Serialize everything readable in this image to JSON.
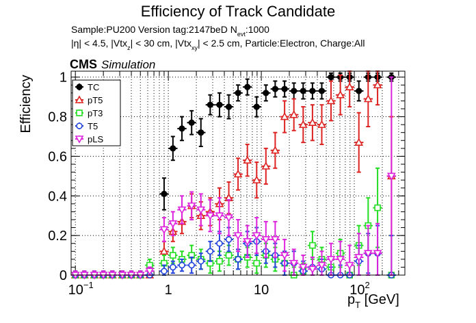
{
  "header": {
    "title": "Efficiency of Track Candidate",
    "sample_line_pre": "Sample:PU200   Version tag:2147beD  N",
    "sample_line_sub": "evt",
    "sample_line_post": ":1000",
    "cuts": {
      "p1": "|η| < 4.5, |Vtx",
      "s1": "z",
      "p2": "| < 30 cm, |Vtx",
      "s2": "xy",
      "p3": "| < 2.5 cm, Particle:Electron, Charge:All"
    }
  },
  "cms_label": {
    "bold": "CMS",
    "italic": "Simulation"
  },
  "chart_data": {
    "type": "scatter",
    "title": "Efficiency of Track Candidate",
    "xlabel": "p_T [GeV]",
    "xlabel_main": "p",
    "xlabel_sub": "T",
    "xlabel_unit": " [GeV]",
    "ylabel": "Efficiency",
    "xscale": "log",
    "xlim": [
      0.09,
      350
    ],
    "ylim": [
      0,
      1.03
    ],
    "grid": true,
    "legend_position": "top-left",
    "x_ticks": [
      {
        "value": 0.1,
        "base": "10",
        "exp": "−1"
      },
      {
        "value": 1,
        "base": "1",
        "exp": ""
      },
      {
        "value": 10,
        "base": "10",
        "exp": ""
      },
      {
        "value": 100,
        "base": "10",
        "exp": "2"
      }
    ],
    "y_ticks": [
      "0",
      "0.2",
      "0.4",
      "0.6",
      "0.8",
      "1"
    ],
    "series": [
      {
        "name": "TC",
        "color": "#000000",
        "marker": "filled-circle",
        "points": [
          [
            0.1,
            0,
            0.02
          ],
          [
            0.125,
            0,
            0.02
          ],
          [
            0.16,
            0,
            0.02
          ],
          [
            0.2,
            0,
            0.02
          ],
          [
            0.25,
            0,
            0.02
          ],
          [
            0.32,
            0,
            0.02
          ],
          [
            0.4,
            0,
            0.02
          ],
          [
            0.5,
            0,
            0.02
          ],
          [
            0.63,
            0,
            0.02
          ],
          [
            0.9,
            0.41,
            0.08
          ],
          [
            1.12,
            0.64,
            0.06
          ],
          [
            1.4,
            0.74,
            0.06
          ],
          [
            1.78,
            0.77,
            0.06
          ],
          [
            2.24,
            0.72,
            0.07
          ],
          [
            2.82,
            0.86,
            0.05
          ],
          [
            3.55,
            0.86,
            0.06
          ],
          [
            4.47,
            0.85,
            0.06
          ],
          [
            5.62,
            0.92,
            0.04
          ],
          [
            7.08,
            0.95,
            0.04
          ],
          [
            8.91,
            0.85,
            0.05
          ],
          [
            11.2,
            0.92,
            0.04
          ],
          [
            14.1,
            0.94,
            0.04
          ],
          [
            17.8,
            0.94,
            0.04
          ],
          [
            22.4,
            0.93,
            0.04
          ],
          [
            28.2,
            0.93,
            0.04
          ],
          [
            35.5,
            0.93,
            0.04
          ],
          [
            44.7,
            0.93,
            0.04
          ],
          [
            56.2,
            1.0,
            0.02
          ],
          [
            70.8,
            1.0,
            0.02
          ],
          [
            89.1,
            1.0,
            0.02
          ],
          [
            112,
            0.93,
            0.05
          ],
          [
            141,
            1.0,
            0.02
          ],
          [
            178,
            1.0,
            0.02
          ],
          [
            251,
            1.0,
            0.02
          ]
        ]
      },
      {
        "name": "pT5",
        "color": "#dd2222",
        "marker": "open-triangle-up",
        "points": [
          [
            0.1,
            0,
            0.02
          ],
          [
            0.125,
            0,
            0.02
          ],
          [
            0.16,
            0,
            0.02
          ],
          [
            0.2,
            0,
            0.02
          ],
          [
            0.25,
            0,
            0.02
          ],
          [
            0.32,
            0,
            0.02
          ],
          [
            0.4,
            0,
            0.02
          ],
          [
            0.5,
            0,
            0.02
          ],
          [
            0.63,
            0,
            0.02
          ],
          [
            0.9,
            0.12,
            0.05
          ],
          [
            1.12,
            0.22,
            0.05
          ],
          [
            1.4,
            0.27,
            0.06
          ],
          [
            1.78,
            0.35,
            0.06
          ],
          [
            2.24,
            0.3,
            0.07
          ],
          [
            2.82,
            0.32,
            0.07
          ],
          [
            3.55,
            0.36,
            0.08
          ],
          [
            4.47,
            0.39,
            0.08
          ],
          [
            5.62,
            0.51,
            0.08
          ],
          [
            7.08,
            0.58,
            0.08
          ],
          [
            8.91,
            0.48,
            0.09
          ],
          [
            11.2,
            0.55,
            0.09
          ],
          [
            14.1,
            0.63,
            0.09
          ],
          [
            17.8,
            0.8,
            0.08
          ],
          [
            22.4,
            0.81,
            0.08
          ],
          [
            28.2,
            0.76,
            0.09
          ],
          [
            35.5,
            0.77,
            0.09
          ],
          [
            44.7,
            0.76,
            0.1
          ],
          [
            56.2,
            0.88,
            0.1
          ],
          [
            70.8,
            0.91,
            0.1
          ],
          [
            89.1,
            0.95,
            0.1
          ],
          [
            112,
            0.67,
            0.15
          ],
          [
            141,
            0.89,
            0.14
          ],
          [
            178,
            0.96,
            0.1
          ],
          [
            251,
            0.5,
            0.3
          ]
        ]
      },
      {
        "name": "pT3",
        "color": "#22dd22",
        "marker": "open-square",
        "points": [
          [
            0.1,
            0,
            0.02
          ],
          [
            0.125,
            0,
            0.02
          ],
          [
            0.16,
            0,
            0.02
          ],
          [
            0.2,
            0,
            0.02
          ],
          [
            0.25,
            0,
            0.02
          ],
          [
            0.32,
            0,
            0.02
          ],
          [
            0.4,
            0,
            0.02
          ],
          [
            0.5,
            0,
            0.02
          ],
          [
            0.63,
            0.05,
            0.03
          ],
          [
            0.9,
            0.06,
            0.04
          ],
          [
            1.12,
            0.1,
            0.04
          ],
          [
            1.4,
            0.08,
            0.04
          ],
          [
            1.78,
            0.1,
            0.05
          ],
          [
            2.24,
            0.08,
            0.05
          ],
          [
            2.82,
            0.06,
            0.05
          ],
          [
            3.55,
            0.07,
            0.05
          ],
          [
            4.47,
            0.1,
            0.05
          ],
          [
            5.62,
            0.08,
            0.05
          ],
          [
            7.08,
            0.09,
            0.05
          ],
          [
            8.91,
            0.06,
            0.05
          ],
          [
            11.2,
            0.1,
            0.06
          ],
          [
            14.1,
            0.08,
            0.06
          ],
          [
            17.8,
            0.06,
            0.06
          ],
          [
            22.4,
            0,
            0.04
          ],
          [
            28.2,
            0.02,
            0.04
          ],
          [
            35.5,
            0.15,
            0.07
          ],
          [
            44.7,
            0.08,
            0.06
          ],
          [
            56.2,
            0.04,
            0.05
          ],
          [
            70.8,
            0.11,
            0.07
          ],
          [
            89.1,
            0,
            0.06
          ],
          [
            112,
            0.15,
            0.1
          ],
          [
            141,
            0.25,
            0.14
          ],
          [
            178,
            0.34,
            0.2
          ],
          [
            251,
            0,
            0.2
          ]
        ]
      },
      {
        "name": "T5",
        "color": "#2244dd",
        "marker": "open-circle",
        "points": [
          [
            0.1,
            0,
            0.02
          ],
          [
            0.125,
            0,
            0.02
          ],
          [
            0.16,
            0,
            0.02
          ],
          [
            0.2,
            0,
            0.02
          ],
          [
            0.25,
            0,
            0.02
          ],
          [
            0.32,
            0,
            0.02
          ],
          [
            0.4,
            0,
            0.02
          ],
          [
            0.5,
            0,
            0.02
          ],
          [
            0.63,
            0,
            0.02
          ],
          [
            0.9,
            0.02,
            0.03
          ],
          [
            1.12,
            0.04,
            0.03
          ],
          [
            1.4,
            0.05,
            0.03
          ],
          [
            1.78,
            0.05,
            0.04
          ],
          [
            2.24,
            0.07,
            0.04
          ],
          [
            2.82,
            0.12,
            0.05
          ],
          [
            3.55,
            0.16,
            0.06
          ],
          [
            4.47,
            0.18,
            0.06
          ],
          [
            5.62,
            0.08,
            0.05
          ],
          [
            7.08,
            0.16,
            0.06
          ],
          [
            8.91,
            0.17,
            0.07
          ],
          [
            11.2,
            0.12,
            0.06
          ],
          [
            14.1,
            0.1,
            0.06
          ],
          [
            17.8,
            0.06,
            0.06
          ],
          [
            22.4,
            0.06,
            0.06
          ],
          [
            28.2,
            0.02,
            0.05
          ],
          [
            35.5,
            0.04,
            0.05
          ],
          [
            44.7,
            0.03,
            0.05
          ],
          [
            56.2,
            0,
            0.04
          ],
          [
            70.8,
            0,
            0.05
          ],
          [
            89.1,
            0,
            0.05
          ],
          [
            112,
            0.07,
            0.08
          ],
          [
            141,
            0.11,
            0.1
          ],
          [
            178,
            0.11,
            0.14
          ],
          [
            251,
            0,
            0.2
          ]
        ]
      },
      {
        "name": "pLS",
        "color": "#dd22dd",
        "marker": "open-triangle-down",
        "points": [
          [
            0.1,
            0,
            0.02
          ],
          [
            0.125,
            0,
            0.02
          ],
          [
            0.16,
            0,
            0.02
          ],
          [
            0.2,
            0,
            0.02
          ],
          [
            0.25,
            0,
            0.02
          ],
          [
            0.32,
            0,
            0.02
          ],
          [
            0.4,
            0,
            0.02
          ],
          [
            0.5,
            0,
            0.02
          ],
          [
            0.63,
            0.02,
            0.02
          ],
          [
            0.9,
            0.23,
            0.06
          ],
          [
            1.12,
            0.26,
            0.06
          ],
          [
            1.4,
            0.33,
            0.07
          ],
          [
            1.78,
            0.35,
            0.07
          ],
          [
            2.24,
            0.33,
            0.08
          ],
          [
            2.82,
            0.3,
            0.08
          ],
          [
            3.55,
            0.3,
            0.09
          ],
          [
            4.47,
            0.29,
            0.09
          ],
          [
            5.62,
            0.2,
            0.08
          ],
          [
            7.08,
            0.17,
            0.08
          ],
          [
            8.91,
            0.2,
            0.09
          ],
          [
            11.2,
            0.18,
            0.09
          ],
          [
            14.1,
            0.18,
            0.09
          ],
          [
            17.8,
            0.1,
            0.08
          ],
          [
            22.4,
            0.06,
            0.07
          ],
          [
            28.2,
            0.04,
            0.06
          ],
          [
            35.5,
            0.03,
            0.06
          ],
          [
            44.7,
            0.05,
            0.07
          ],
          [
            56.2,
            0.08,
            0.08
          ],
          [
            70.8,
            0.08,
            0.09
          ],
          [
            89.1,
            0.05,
            0.1
          ],
          [
            112,
            0.09,
            0.12
          ],
          [
            141,
            0.11,
            0.14
          ],
          [
            178,
            0.11,
            0.15
          ],
          [
            251,
            0.5,
            0.5
          ]
        ]
      }
    ]
  }
}
